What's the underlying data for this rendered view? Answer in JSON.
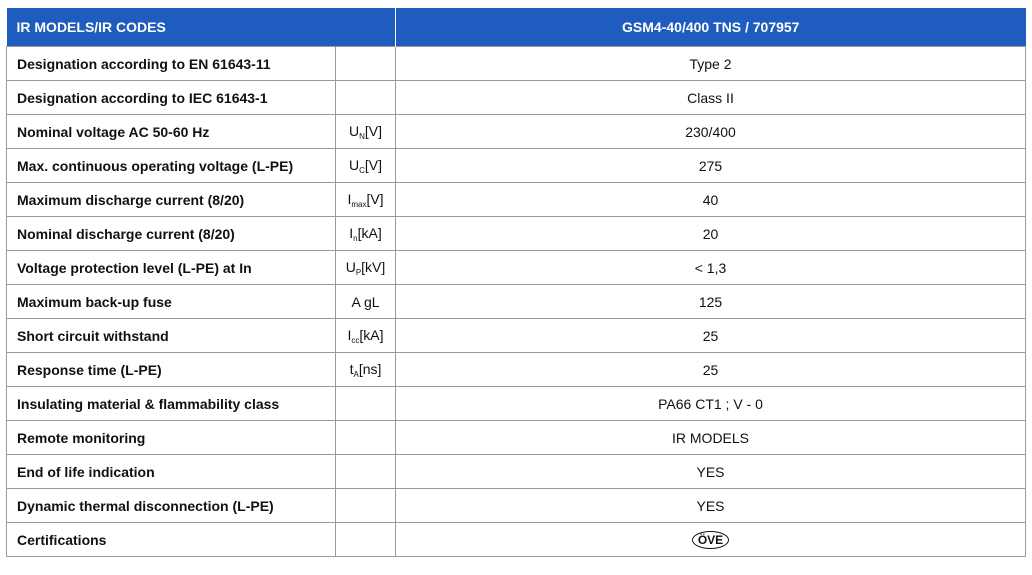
{
  "table": {
    "header": [
      "IR MODELS/IR CODES",
      "GSM4-40/400 TNS / 707957"
    ],
    "rows": [
      {
        "label": "Designation according to EN 61643-11",
        "value": "Type 2"
      },
      {
        "label": "Designation according to IEC 61643-1",
        "value": "Class II"
      },
      {
        "label": "Nominal voltage AC 50-60 Hz",
        "unit": {
          "symbol": "U",
          "sub": "N",
          "unit": "[V]"
        },
        "value": "230/400"
      },
      {
        "label": "Max. continuous operating voltage (L-PE)",
        "unit": {
          "symbol": "U",
          "sub": "C",
          "unit": "[V]"
        },
        "value": "275"
      },
      {
        "label": "Maximum discharge current (8/20)",
        "unit": {
          "symbol": "I",
          "sub": "max",
          "unit": "[V]"
        },
        "value": "40"
      },
      {
        "label": "Nominal discharge current (8/20)",
        "unit": {
          "symbol": "I",
          "sub": "n",
          "unit": "[kA]"
        },
        "value": "20"
      },
      {
        "label": "Voltage protection level (L-PE) at In",
        "unit": {
          "symbol": "U",
          "sub": "P",
          "unit": "[kV]"
        },
        "value": "< 1,3"
      },
      {
        "label": "Maximum back-up fuse",
        "unit": {
          "symbol": "A gL"
        },
        "value": "125"
      },
      {
        "label": "Short circuit withstand",
        "unit": {
          "symbol": "I",
          "sub": "cc",
          "unit": "[kA]"
        },
        "value": "25"
      },
      {
        "label": "Response time (L-PE)",
        "unit": {
          "symbol": "t",
          "sub": "A",
          "unit": "[ns]"
        },
        "value": "25"
      },
      {
        "label": "Insulating material & flammability class",
        "value": "PA66 CT1 ; V - 0"
      },
      {
        "label": "Remote monitoring",
        "value": "IR MODELS"
      },
      {
        "label": "End of life indication",
        "value": "YES"
      },
      {
        "label": "Dynamic thermal disconnection (L-PE)",
        "value": "YES"
      },
      {
        "label": "Certifications",
        "value": "ÖVE",
        "badge": true
      }
    ]
  }
}
